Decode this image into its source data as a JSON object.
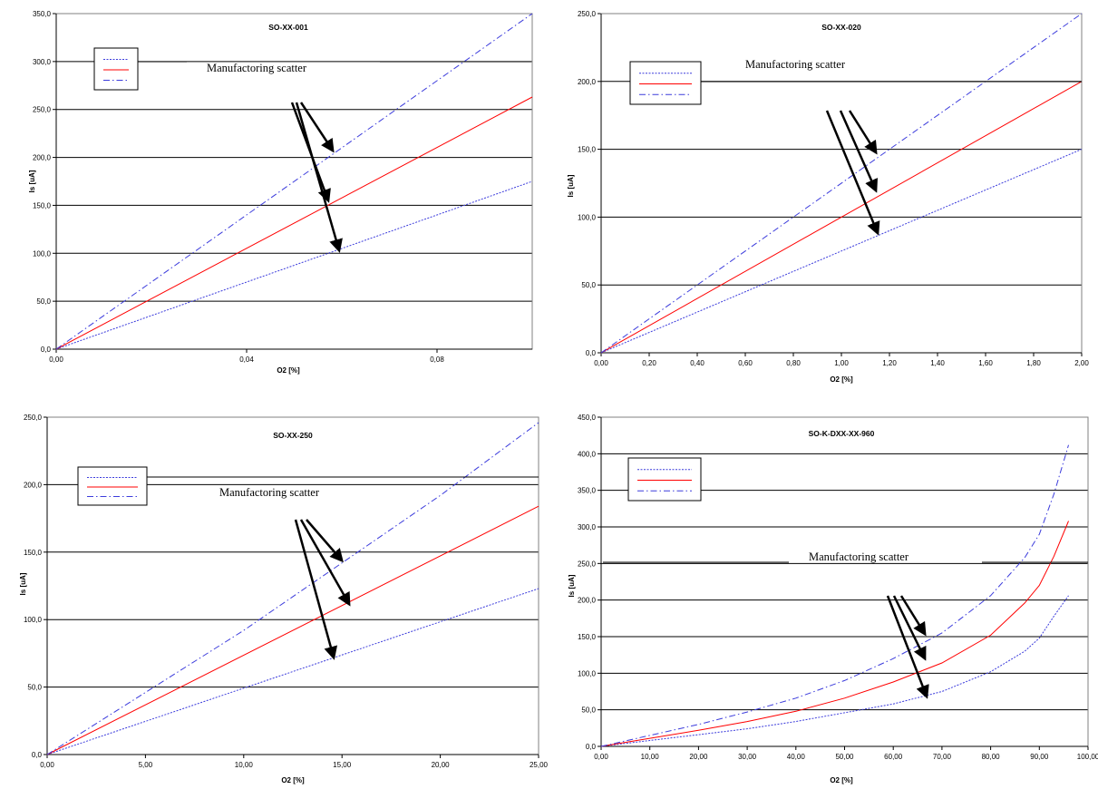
{
  "chart_data": [
    {
      "type": "line",
      "title": "SO-XX-001",
      "xlabel": "O2 [%]",
      "ylabel": "Is [uA]",
      "xlim": [
        0,
        0.1
      ],
      "ylim": [
        0,
        350
      ],
      "xticks": [
        0,
        0.04,
        0.08
      ],
      "xtick_labels": [
        "0,00",
        "0,04",
        "0,08"
      ],
      "yticks": [
        0,
        50,
        100,
        150,
        200,
        250,
        300,
        350
      ],
      "ytick_labels": [
        "0,0",
        "50,0",
        "100,0",
        "150,0",
        "200,0",
        "250,0",
        "300,0",
        "350,0"
      ],
      "series": [
        {
          "style": "dotted",
          "color": "#3c3cdc",
          "points": [
            [
              0,
              0
            ],
            [
              0.1,
              175
            ]
          ]
        },
        {
          "style": "solid",
          "color": "#ff0000",
          "points": [
            [
              0,
              0
            ],
            [
              0.1,
              263
            ]
          ]
        },
        {
          "style": "dashdot",
          "color": "#3c3cdc",
          "points": [
            [
              0,
              0
            ],
            [
              0.1,
              350
            ]
          ]
        }
      ],
      "annotation": "Manufactoring scatter",
      "legend": "top-left",
      "grid": "horizontal"
    },
    {
      "type": "line",
      "title": "SO-XX-020",
      "xlabel": "O2 [%]",
      "ylabel": "Is [uA]",
      "xlim": [
        0,
        2
      ],
      "ylim": [
        0,
        250
      ],
      "xticks": [
        0,
        0.2,
        0.4,
        0.6,
        0.8,
        1.0,
        1.2,
        1.4,
        1.6,
        1.8,
        2.0
      ],
      "xtick_labels": [
        "0,00",
        "0,20",
        "0,40",
        "0,60",
        "0,80",
        "1,00",
        "1,20",
        "1,40",
        "1,60",
        "1,80",
        "2,00"
      ],
      "yticks": [
        0,
        50,
        100,
        150,
        200,
        250
      ],
      "ytick_labels": [
        "0,0",
        "50,0",
        "100,0",
        "150,0",
        "200,0",
        "250,0"
      ],
      "series": [
        {
          "style": "dotted",
          "color": "#3c3cdc",
          "points": [
            [
              0,
              0
            ],
            [
              2,
              150
            ]
          ]
        },
        {
          "style": "solid",
          "color": "#ff0000",
          "points": [
            [
              0,
              0
            ],
            [
              2,
              200
            ]
          ]
        },
        {
          "style": "dashdot",
          "color": "#3c3cdc",
          "points": [
            [
              0,
              0
            ],
            [
              2,
              250
            ]
          ]
        }
      ],
      "annotation": "Manufactoring scatter",
      "legend": "top-left",
      "grid": "horizontal"
    },
    {
      "type": "line",
      "title": "SO-XX-250",
      "xlabel": "O2 [%]",
      "ylabel": "Is [uA]",
      "xlim": [
        0,
        25
      ],
      "ylim": [
        0,
        250
      ],
      "xticks": [
        0,
        5,
        10,
        15,
        20,
        25
      ],
      "xtick_labels": [
        "0,00",
        "5,00",
        "10,00",
        "15,00",
        "20,00",
        "25,00"
      ],
      "yticks": [
        0,
        50,
        100,
        150,
        200,
        250
      ],
      "ytick_labels": [
        "0,0",
        "50,0",
        "100,0",
        "150,0",
        "200,0",
        "250,0"
      ],
      "series": [
        {
          "style": "dotted",
          "color": "#3c3cdc",
          "points": [
            [
              0,
              0
            ],
            [
              25,
              123
            ]
          ]
        },
        {
          "style": "solid",
          "color": "#ff0000",
          "points": [
            [
              0,
              0
            ],
            [
              25,
              184
            ]
          ]
        },
        {
          "style": "dashdot",
          "color": "#3c3cdc",
          "points": [
            [
              0,
              0
            ],
            [
              10,
              92
            ],
            [
              20,
              192
            ],
            [
              25,
              246
            ]
          ]
        }
      ],
      "annotation": "Manufactoring scatter",
      "legend": "top-left",
      "grid": "horizontal"
    },
    {
      "type": "line",
      "title": "SO-K-DXX-XX-960",
      "xlabel": "O2 [%]",
      "ylabel": "Is [uA]",
      "xlim": [
        0,
        100
      ],
      "ylim": [
        0,
        450
      ],
      "xticks": [
        0,
        10,
        20,
        30,
        40,
        50,
        60,
        70,
        80,
        90,
        100
      ],
      "xtick_labels": [
        "0,00",
        "10,00",
        "20,00",
        "30,00",
        "40,00",
        "50,00",
        "60,00",
        "70,00",
        "80,00",
        "90,00",
        "100,00"
      ],
      "yticks": [
        0,
        50,
        100,
        150,
        200,
        250,
        300,
        350,
        400,
        450
      ],
      "ytick_labels": [
        "0,0",
        "50,0",
        "100,0",
        "150,0",
        "200,0",
        "250,0",
        "300,0",
        "350,0",
        "400,0",
        "450,0"
      ],
      "series": [
        {
          "style": "dotted",
          "color": "#3c3cdc",
          "points": [
            [
              0,
              0
            ],
            [
              10,
              8
            ],
            [
              20,
              16
            ],
            [
              30,
              24
            ],
            [
              40,
              34
            ],
            [
              50,
              46
            ],
            [
              60,
              58
            ],
            [
              70,
              75
            ],
            [
              80,
              102
            ],
            [
              87,
              130
            ],
            [
              90,
              148
            ],
            [
              93,
              178
            ],
            [
              96,
              206
            ]
          ]
        },
        {
          "style": "solid",
          "color": "#ff0000",
          "points": [
            [
              0,
              0
            ],
            [
              10,
              11
            ],
            [
              20,
              22
            ],
            [
              30,
              34
            ],
            [
              40,
              48
            ],
            [
              50,
              66
            ],
            [
              60,
              88
            ],
            [
              70,
              114
            ],
            [
              80,
              152
            ],
            [
              87,
              196
            ],
            [
              90,
              220
            ],
            [
              93,
              260
            ],
            [
              96,
              308
            ]
          ]
        },
        {
          "style": "dashdot",
          "color": "#3c3cdc",
          "points": [
            [
              0,
              0
            ],
            [
              10,
              15
            ],
            [
              20,
              30
            ],
            [
              30,
              47
            ],
            [
              40,
              66
            ],
            [
              50,
              90
            ],
            [
              60,
              120
            ],
            [
              70,
              155
            ],
            [
              80,
              206
            ],
            [
              87,
              258
            ],
            [
              90,
              290
            ],
            [
              93,
              345
            ],
            [
              96,
              412
            ]
          ]
        }
      ],
      "annotation": "Manufactoring scatter",
      "legend": "top-left",
      "grid": "horizontal"
    }
  ]
}
